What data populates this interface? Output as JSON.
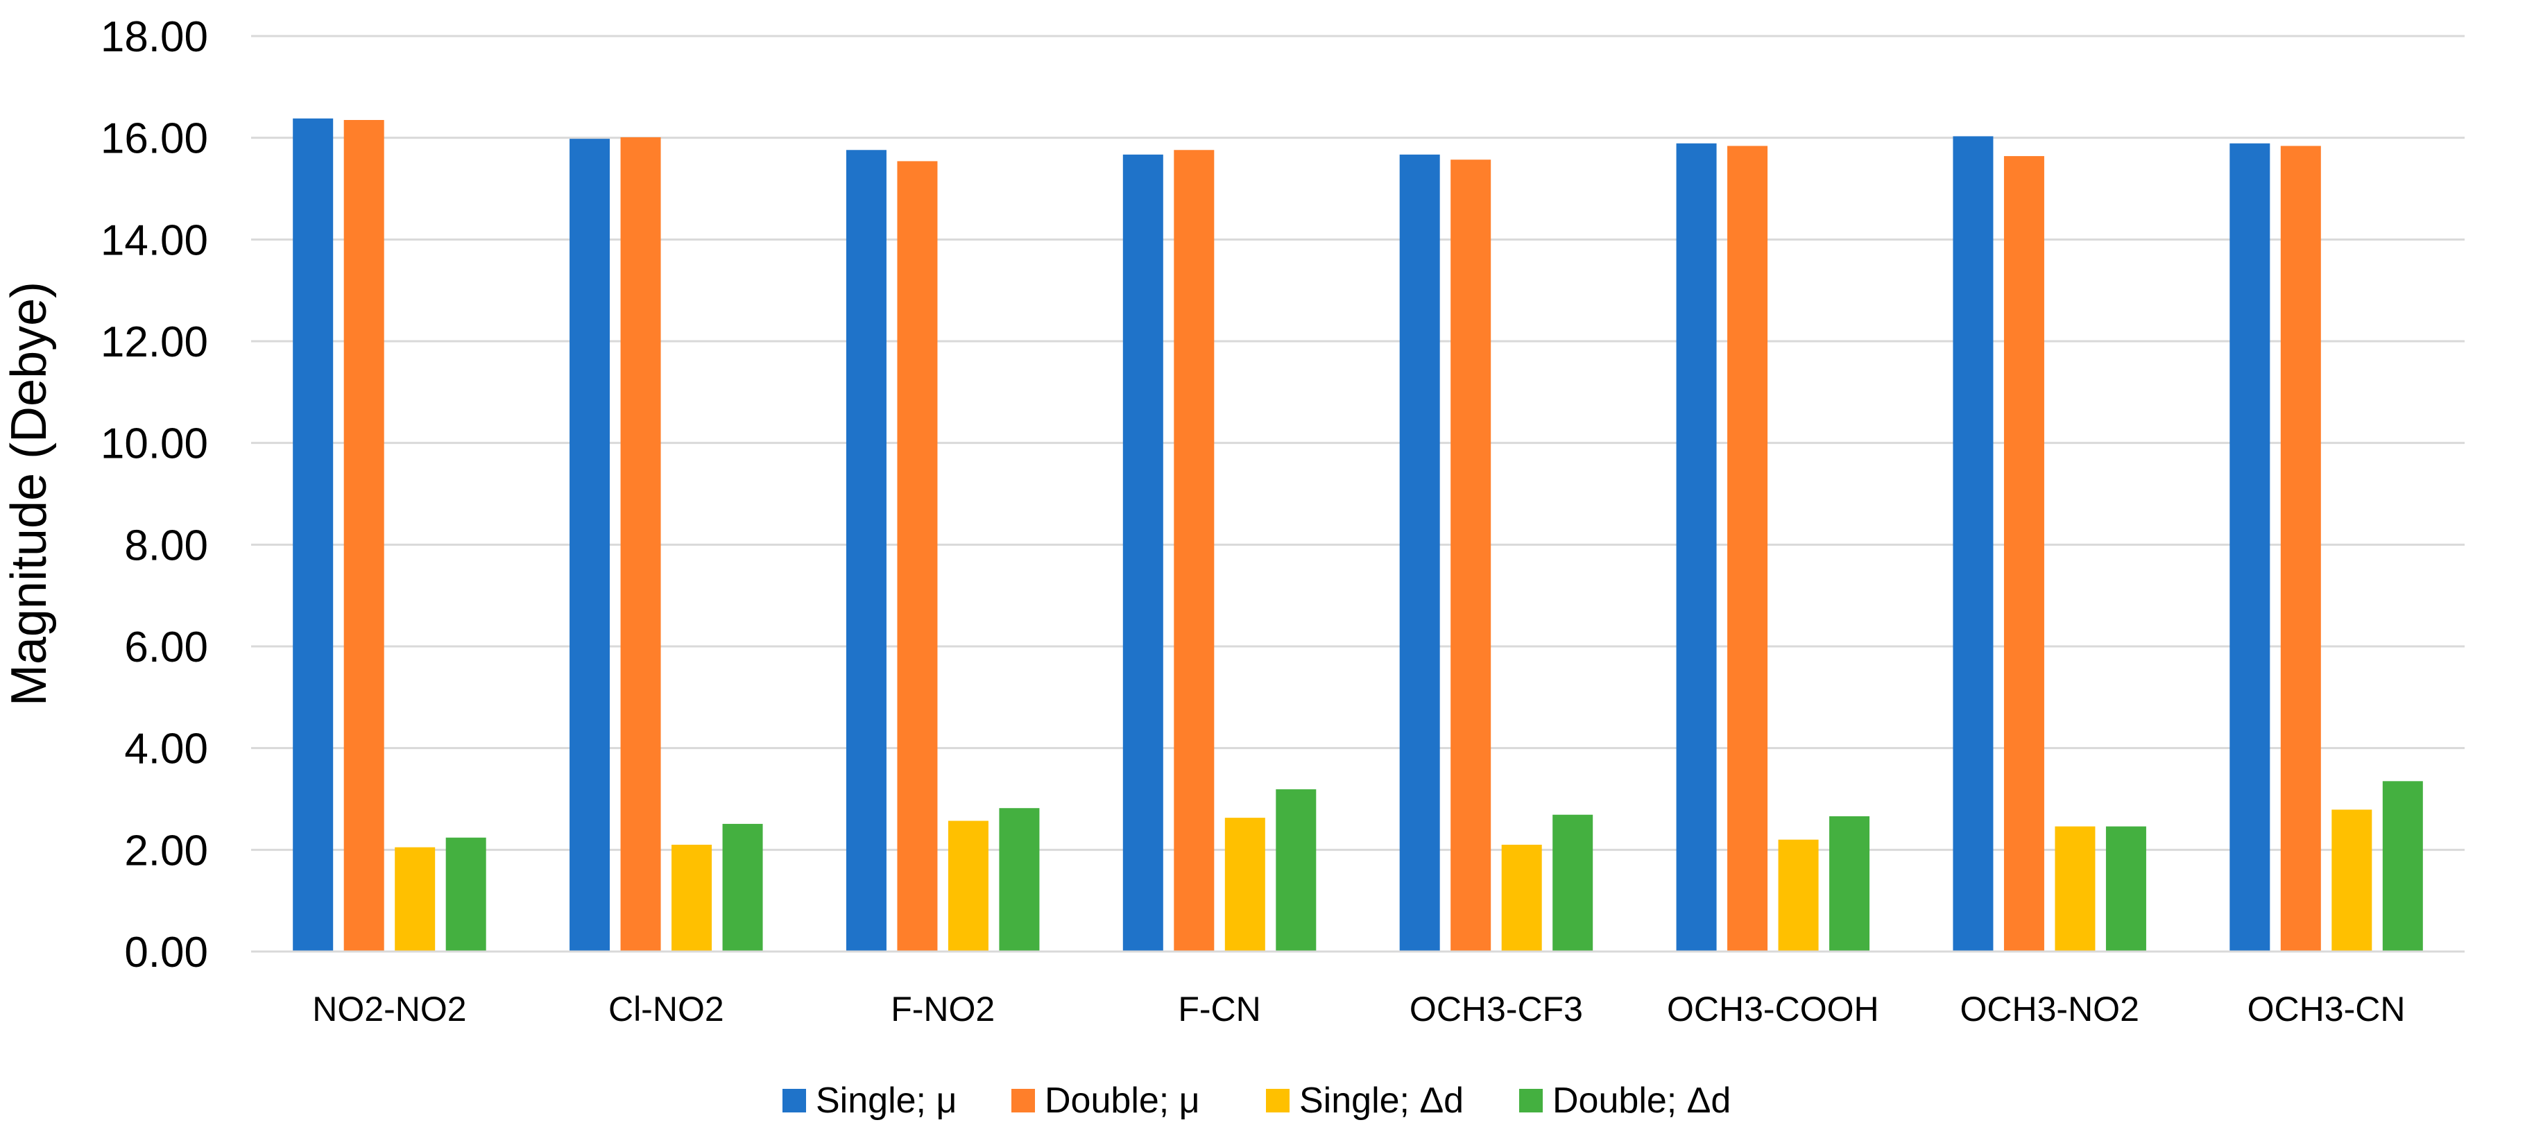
{
  "chart_data": {
    "type": "bar",
    "title": "",
    "xlabel": "",
    "ylabel": "Magnitude (Debye)",
    "ylim": [
      0,
      18
    ],
    "ytick_step": 2,
    "ytick_labels": [
      "0.00",
      "2.00",
      "4.00",
      "6.00",
      "8.00",
      "10.00",
      "12.00",
      "14.00",
      "16.00",
      "18.00"
    ],
    "grid": true,
    "legend_position": "bottom-center",
    "categories": [
      "NO2-NO2",
      "Cl-NO2",
      "F-NO2",
      "F-CN",
      "OCH3-CF3",
      "OCH3-COOH",
      "OCH3-NO2",
      "OCH3-CN"
    ],
    "series": [
      {
        "name": "Single; μ",
        "color": "#1F73C9",
        "values": [
          16.38,
          15.98,
          15.76,
          15.67,
          15.67,
          15.89,
          16.03,
          15.89
        ]
      },
      {
        "name": "Double; μ",
        "color": "#FF7F2A",
        "values": [
          16.35,
          16.01,
          15.54,
          15.76,
          15.57,
          15.84,
          15.64,
          15.84
        ]
      },
      {
        "name": "Single; Δd",
        "color": "#FFC000",
        "values": [
          2.05,
          2.1,
          2.57,
          2.63,
          2.1,
          2.2,
          2.46,
          2.79
        ]
      },
      {
        "name": "Double; Δd",
        "color": "#44B040",
        "values": [
          2.24,
          2.51,
          2.82,
          3.19,
          2.69,
          2.66,
          2.46,
          3.35
        ]
      }
    ]
  }
}
